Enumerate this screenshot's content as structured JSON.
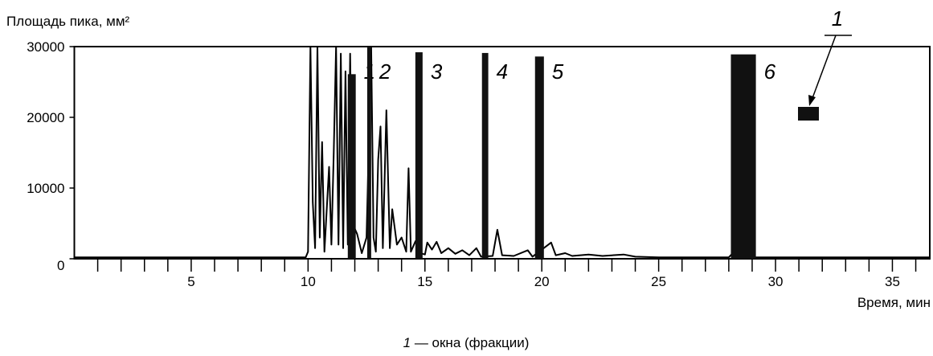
{
  "chart_data": {
    "type": "line",
    "y_label": "Площадь пика, мм²",
    "x_label": "Время, мин",
    "xlim": [
      0,
      36.6
    ],
    "ylim": [
      0,
      30000
    ],
    "xticks": [
      5,
      10,
      15,
      20,
      25,
      30,
      35
    ],
    "xminorticks": [
      1,
      2,
      3,
      4,
      6,
      7,
      8,
      9,
      11,
      12,
      13,
      14,
      16,
      17,
      18,
      19,
      21,
      22,
      23,
      24,
      26,
      27,
      28,
      29,
      31,
      32,
      33,
      34,
      36
    ],
    "yticks": [
      0,
      10000,
      20000,
      30000
    ],
    "x": [
      0,
      9.9,
      10.0,
      10.1,
      10.2,
      10.3,
      10.4,
      10.5,
      10.6,
      10.7,
      10.9,
      11.0,
      11.1,
      11.2,
      11.3,
      11.4,
      11.5,
      11.6,
      11.7,
      11.8,
      11.9,
      12.1,
      12.3,
      12.5,
      12.7,
      12.8,
      12.9,
      13.0,
      13.1,
      13.2,
      13.35,
      13.5,
      13.6,
      13.8,
      14.0,
      14.2,
      14.3,
      14.4,
      14.6,
      14.8,
      15.0,
      15.1,
      15.3,
      15.5,
      15.7,
      16.0,
      16.3,
      16.6,
      16.9,
      17.2,
      17.4,
      17.9,
      18.1,
      18.3,
      18.8,
      19.4,
      19.6,
      20.4,
      20.6,
      21.0,
      21.3,
      22.0,
      22.6,
      23.5,
      24.0,
      25.0,
      28.0,
      28.2,
      28.4,
      36.6
    ],
    "series": [
      {
        "color": "#000000",
        "values": [
          200,
          200,
          1000,
          30000,
          8000,
          1500,
          30000,
          3000,
          16500,
          1000,
          13000,
          2000,
          15000,
          30000,
          2000,
          29000,
          1500,
          26500,
          2000,
          29000,
          5000,
          3500,
          800,
          3000,
          30000,
          3000,
          1000,
          14000,
          18700,
          1500,
          21000,
          1500,
          7000,
          2000,
          3000,
          1000,
          12800,
          1000,
          2500,
          800,
          600,
          2300,
          1300,
          2400,
          800,
          1500,
          700,
          1200,
          500,
          1500,
          300,
          400,
          4100,
          500,
          400,
          1200,
          300,
          2300,
          500,
          800,
          400,
          600,
          400,
          600,
          300,
          200,
          200,
          900,
          200,
          200
        ]
      }
    ],
    "windows": [
      {
        "label": "1",
        "start": 11.7,
        "end": 12.04,
        "height": 26100
      },
      {
        "label": "2",
        "start": 12.53,
        "end": 12.7,
        "height": 30000
      },
      {
        "label": "3",
        "start": 14.59,
        "end": 14.9,
        "height": 29200
      },
      {
        "label": "4",
        "start": 17.44,
        "end": 17.71,
        "height": 29100
      },
      {
        "label": "5",
        "start": 19.71,
        "end": 20.09,
        "height": 28600
      },
      {
        "label": "6",
        "start": 28.09,
        "end": 29.16,
        "height": 28900
      }
    ],
    "window_color": "#111111",
    "legend_key": "1",
    "caption": {
      "key": "1",
      "text": "— окна (фракции)"
    }
  }
}
